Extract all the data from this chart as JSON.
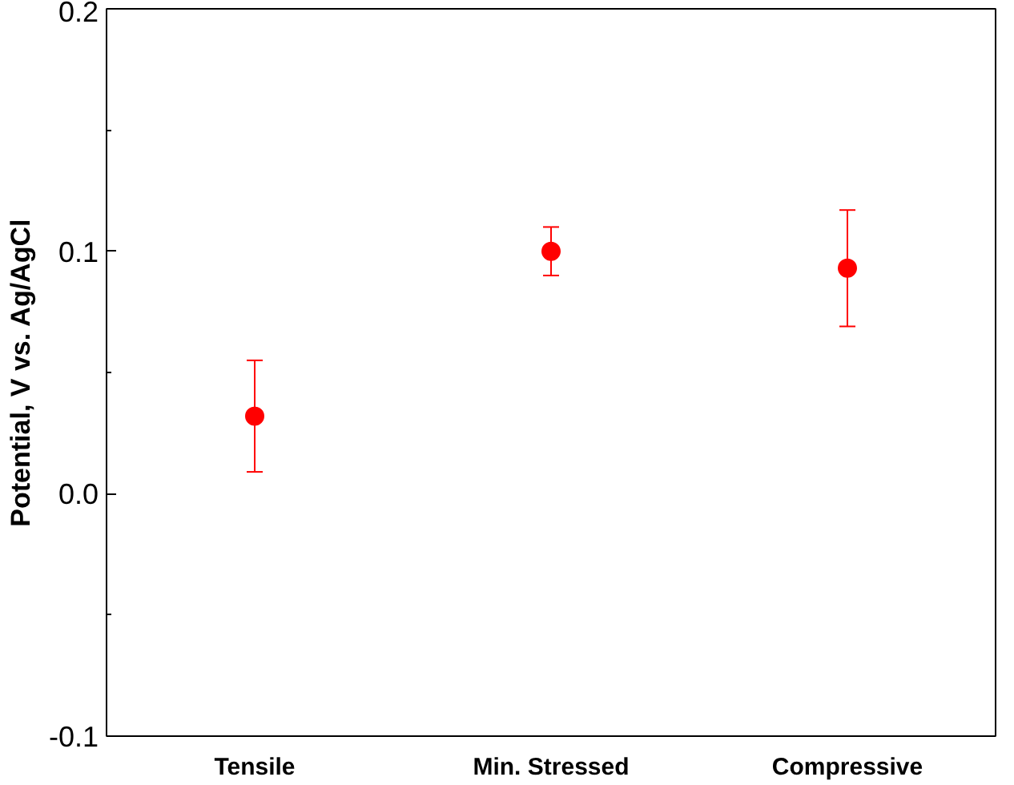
{
  "chart_data": {
    "type": "scatter",
    "ylabel": "Potential, V vs. Ag/AgCl",
    "categories": [
      "Tensile",
      "Min. Stressed",
      "Compressive"
    ],
    "series": [
      {
        "color": "#ff0000",
        "values": [
          0.032,
          0.1,
          0.093
        ],
        "errors": [
          0.023,
          0.01,
          0.024
        ]
      }
    ],
    "ylim": [
      -0.1,
      0.2
    ],
    "yticks": [
      {
        "value": -0.1,
        "label": "-0.1"
      },
      {
        "value": 0.0,
        "label": "0.0"
      },
      {
        "value": 0.1,
        "label": "0.1"
      },
      {
        "value": 0.2,
        "label": "0.2"
      }
    ],
    "marker": "circle",
    "grid": false
  }
}
